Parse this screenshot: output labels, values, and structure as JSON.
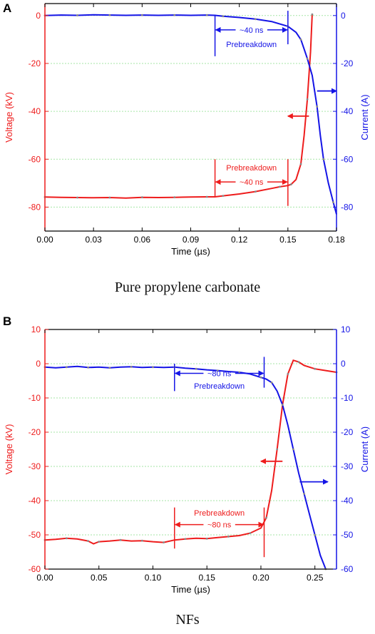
{
  "colors": {
    "voltage": "#ee1c1c",
    "current": "#1414e6",
    "grid": "#a6e6a6",
    "axis": "#000000",
    "marker": "#888888"
  },
  "captions": [
    "Pure propylene carbonate",
    "NFs"
  ],
  "chart_data": [
    {
      "type": "line",
      "panel": "A",
      "xlabel": "Time (µs)",
      "ylabel": "Voltage (kV)",
      "y2label": "Current (A)",
      "xlim": [
        0,
        0.18
      ],
      "ylim": [
        -90,
        5
      ],
      "y2lim": [
        -90,
        5
      ],
      "xticks": [
        0,
        0.03,
        0.06,
        0.09,
        0.12,
        0.15,
        0.18
      ],
      "xtick_labels": [
        "0.00",
        "0.03",
        "0.06",
        "0.09",
        "0.12",
        "0.15",
        "0.18"
      ],
      "yticks": [
        0,
        -20,
        -40,
        -60,
        -80
      ],
      "y2ticks": [
        0,
        -20,
        -40,
        -60,
        -80
      ],
      "grid": "horizontal",
      "series": [
        {
          "axis": "left",
          "x": [
            0,
            0.01,
            0.02,
            0.03,
            0.04,
            0.05,
            0.06,
            0.07,
            0.08,
            0.09,
            0.1,
            0.105,
            0.11,
            0.12,
            0.13,
            0.14,
            0.145,
            0.15,
            0.152,
            0.155,
            0.158,
            0.16,
            0.162,
            0.164,
            0.165
          ],
          "y": [
            -75.8,
            -75.9,
            -76.0,
            -76.1,
            -76.0,
            -76.2,
            -75.9,
            -76.0,
            -75.9,
            -75.8,
            -75.7,
            -75.7,
            -75.3,
            -74.5,
            -73.5,
            -72.2,
            -71.5,
            -71.0,
            -70.5,
            -68.5,
            -62.0,
            -50.0,
            -35.0,
            -15.0,
            0.5
          ]
        },
        {
          "axis": "right",
          "x": [
            0,
            0.01,
            0.02,
            0.03,
            0.04,
            0.05,
            0.06,
            0.07,
            0.08,
            0.09,
            0.1,
            0.105,
            0.11,
            0.12,
            0.13,
            0.14,
            0.15,
            0.155,
            0.158,
            0.16,
            0.162,
            0.165,
            0.168,
            0.17,
            0.172,
            0.175,
            0.178,
            0.18
          ],
          "y": [
            0.0,
            0.2,
            0.1,
            0.3,
            0.2,
            0.1,
            0.2,
            0.1,
            0.2,
            0.1,
            0.2,
            0.1,
            -0.3,
            -0.8,
            -1.5,
            -2.5,
            -4.5,
            -7.0,
            -10.0,
            -14.0,
            -18.0,
            -25.0,
            -38.0,
            -50.0,
            -60.0,
            -70.0,
            -78.0,
            -83.0
          ]
        }
      ],
      "annotations": [
        {
          "text": "~40 ns",
          "color": "blue",
          "x": 0.105,
          "x2": 0.15,
          "y": -6.0
        },
        {
          "text": "Prebreakdown",
          "color": "blue",
          "x": 0.1275,
          "y": -12.0
        },
        {
          "text": "Prebreakdown",
          "color": "red",
          "x": 0.1275,
          "y": -63.5
        },
        {
          "text": "~40 ns",
          "color": "red",
          "x": 0.105,
          "x2": 0.15,
          "y": -69.5
        }
      ],
      "vlines": [
        {
          "color": "blue",
          "x": 0.105,
          "y_from": 0.0,
          "y_to": -17.0
        },
        {
          "color": "blue",
          "x": 0.15,
          "y_from": 2.0,
          "y_to": -12.0
        },
        {
          "color": "red",
          "x": 0.105,
          "y_from": -60.0,
          "y_to": -75.5
        },
        {
          "color": "red",
          "x": 0.15,
          "y_from": -60.0,
          "y_to": -79.5
        }
      ],
      "axis_arrows": [
        {
          "color": "red",
          "direction": "left",
          "x_from": 0.163,
          "x_to": 0.15,
          "y": -42.0
        },
        {
          "color": "blue",
          "direction": "right",
          "x_from": 0.168,
          "x_to": 0.18,
          "y": -31.5
        }
      ]
    },
    {
      "type": "line",
      "panel": "B",
      "xlabel": "Time (µs)",
      "ylabel": "Voltage (kV)",
      "y2label": "Current (A)",
      "xlim": [
        0,
        0.27
      ],
      "ylim": [
        -60,
        10
      ],
      "y2lim": [
        -60,
        10
      ],
      "xticks": [
        0,
        0.05,
        0.1,
        0.15,
        0.2,
        0.25
      ],
      "xtick_labels": [
        "0.00",
        "0.05",
        "0.10",
        "0.15",
        "0.20",
        "0.25"
      ],
      "yticks": [
        10,
        0,
        -10,
        -20,
        -30,
        -40,
        -50,
        -60
      ],
      "y2ticks": [
        10,
        0,
        -10,
        -20,
        -30,
        -40,
        -50,
        -60
      ],
      "grid": "horizontal",
      "series": [
        {
          "axis": "left",
          "x": [
            0,
            0.01,
            0.02,
            0.03,
            0.04,
            0.045,
            0.05,
            0.06,
            0.07,
            0.08,
            0.09,
            0.1,
            0.11,
            0.12,
            0.13,
            0.14,
            0.15,
            0.16,
            0.17,
            0.18,
            0.19,
            0.2,
            0.205,
            0.21,
            0.215,
            0.22,
            0.225,
            0.23,
            0.235,
            0.24,
            0.25,
            0.26,
            0.27
          ],
          "y": [
            -51.5,
            -51.3,
            -51.0,
            -51.2,
            -51.8,
            -52.6,
            -52.0,
            -51.8,
            -51.5,
            -51.8,
            -51.7,
            -52.0,
            -52.2,
            -51.5,
            -51.2,
            -51.0,
            -51.1,
            -50.8,
            -50.5,
            -50.2,
            -49.5,
            -48.0,
            -45.0,
            -37.0,
            -25.0,
            -12.0,
            -3.0,
            1.0,
            0.5,
            -0.5,
            -1.5,
            -2.0,
            -2.5
          ]
        },
        {
          "axis": "right",
          "x": [
            0,
            0.01,
            0.02,
            0.03,
            0.04,
            0.05,
            0.06,
            0.07,
            0.08,
            0.09,
            0.1,
            0.11,
            0.12,
            0.13,
            0.14,
            0.15,
            0.16,
            0.17,
            0.18,
            0.19,
            0.2,
            0.205,
            0.21,
            0.215,
            0.22,
            0.225,
            0.23,
            0.235,
            0.24,
            0.245,
            0.25,
            0.255,
            0.26
          ],
          "y": [
            -1.0,
            -1.2,
            -1.0,
            -0.8,
            -1.1,
            -1.0,
            -1.2,
            -1.0,
            -0.9,
            -1.1,
            -1.0,
            -1.1,
            -1.0,
            -1.3,
            -1.5,
            -1.8,
            -2.0,
            -2.3,
            -2.5,
            -3.0,
            -4.0,
            -4.5,
            -5.5,
            -8.0,
            -12.0,
            -18.0,
            -25.0,
            -32.0,
            -38.0,
            -44.0,
            -50.0,
            -56.0,
            -60.0
          ]
        }
      ],
      "annotations": [
        {
          "text": "~80 ns",
          "color": "blue",
          "x": 0.12,
          "x2": 0.203,
          "y": -2.8
        },
        {
          "text": "Prebreakdown",
          "color": "blue",
          "x": 0.1615,
          "y": -6.5
        },
        {
          "text": "Prebreakdown",
          "color": "red",
          "x": 0.1615,
          "y": -43.5
        },
        {
          "text": "~80 ns",
          "color": "red",
          "x": 0.12,
          "x2": 0.203,
          "y": -47.0
        }
      ],
      "vlines": [
        {
          "color": "blue",
          "x": 0.12,
          "y_from": 0.0,
          "y_to": -8.0
        },
        {
          "color": "blue",
          "x": 0.203,
          "y_from": 2.0,
          "y_to": -7.0
        },
        {
          "color": "red",
          "x": 0.12,
          "y_from": -42.0,
          "y_to": -54.0
        },
        {
          "color": "red",
          "x": 0.203,
          "y_from": -42.0,
          "y_to": -56.5
        }
      ],
      "axis_arrows": [
        {
          "color": "red",
          "direction": "left",
          "x_from": 0.22,
          "x_to": 0.2,
          "y": -28.5
        },
        {
          "color": "blue",
          "direction": "right",
          "x_from": 0.236,
          "x_to": 0.262,
          "y": -34.5
        }
      ]
    }
  ]
}
